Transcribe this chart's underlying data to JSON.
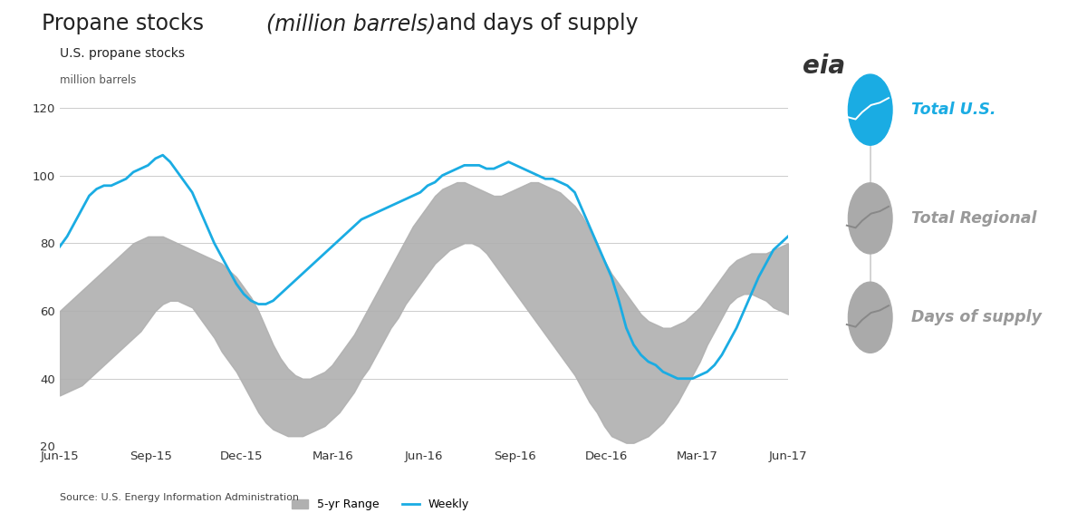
{
  "title_main": "Propane stocks ",
  "title_italic": "(million barrels)",
  "title_end": " and days of supply",
  "subtitle1": "U.S. propane stocks",
  "subtitle2": "million barrels",
  "source": "Source: U.S. Energy Information Administration",
  "ylim": [
    20,
    120
  ],
  "yticks": [
    20,
    40,
    60,
    80,
    100,
    120
  ],
  "xtick_labels": [
    "Jun-15",
    "Sep-15",
    "Dec-15",
    "Mar-16",
    "Jun-16",
    "Sep-16",
    "Dec-16",
    "Mar-17",
    "Jun-17"
  ],
  "bg_color": "#ffffff",
  "grid_color": "#cccccc",
  "range_color": "#b0b0b0",
  "line_color": "#1aace3",
  "legend_range_label": "5-yr Range",
  "legend_weekly_label": "Weekly",
  "weekly": [
    79,
    82,
    86,
    90,
    94,
    96,
    97,
    97,
    98,
    99,
    101,
    102,
    103,
    105,
    106,
    104,
    101,
    98,
    95,
    90,
    85,
    80,
    76,
    72,
    68,
    65,
    63,
    62,
    62,
    63,
    65,
    67,
    69,
    71,
    73,
    75,
    77,
    79,
    81,
    83,
    85,
    87,
    88,
    89,
    90,
    91,
    92,
    93,
    94,
    95,
    97,
    98,
    100,
    101,
    102,
    103,
    103,
    103,
    102,
    102,
    103,
    104,
    103,
    102,
    101,
    100,
    99,
    99,
    98,
    97,
    95,
    90,
    85,
    80,
    75,
    70,
    63,
    55,
    50,
    47,
    45,
    44,
    42,
    41,
    40,
    40,
    40,
    41,
    42,
    44,
    47,
    51,
    55,
    60,
    65,
    70,
    74,
    78,
    80,
    82
  ],
  "range_low": [
    35,
    36,
    37,
    38,
    40,
    42,
    44,
    46,
    48,
    50,
    52,
    54,
    57,
    60,
    62,
    63,
    63,
    62,
    61,
    58,
    55,
    52,
    48,
    45,
    42,
    38,
    34,
    30,
    27,
    25,
    24,
    23,
    23,
    23,
    24,
    25,
    26,
    28,
    30,
    33,
    36,
    40,
    43,
    47,
    51,
    55,
    58,
    62,
    65,
    68,
    71,
    74,
    76,
    78,
    79,
    80,
    80,
    79,
    77,
    74,
    71,
    68,
    65,
    62,
    59,
    56,
    53,
    50,
    47,
    44,
    41,
    37,
    33,
    30,
    26,
    23,
    22,
    21,
    21,
    22,
    23,
    25,
    27,
    30,
    33,
    37,
    41,
    45,
    50,
    54,
    58,
    62,
    64,
    65,
    65,
    64,
    63,
    61,
    60,
    59
  ],
  "range_high": [
    60,
    62,
    64,
    66,
    68,
    70,
    72,
    74,
    76,
    78,
    80,
    81,
    82,
    82,
    82,
    81,
    80,
    79,
    78,
    77,
    76,
    75,
    74,
    72,
    70,
    67,
    64,
    60,
    55,
    50,
    46,
    43,
    41,
    40,
    40,
    41,
    42,
    44,
    47,
    50,
    53,
    57,
    61,
    65,
    69,
    73,
    77,
    81,
    85,
    88,
    91,
    94,
    96,
    97,
    98,
    98,
    97,
    96,
    95,
    94,
    94,
    95,
    96,
    97,
    98,
    98,
    97,
    96,
    95,
    93,
    91,
    88,
    84,
    79,
    75,
    71,
    68,
    65,
    62,
    59,
    57,
    56,
    55,
    55,
    56,
    57,
    59,
    61,
    64,
    67,
    70,
    73,
    75,
    76,
    77,
    77,
    77,
    78,
    79,
    80
  ],
  "right_panel_items": [
    {
      "label": "Total U.S.",
      "color": "#1aace3",
      "active": true
    },
    {
      "label": "Total Regional",
      "color": "#aaaaaa",
      "active": false
    },
    {
      "label": "Days of supply",
      "color": "#aaaaaa",
      "active": false
    }
  ]
}
